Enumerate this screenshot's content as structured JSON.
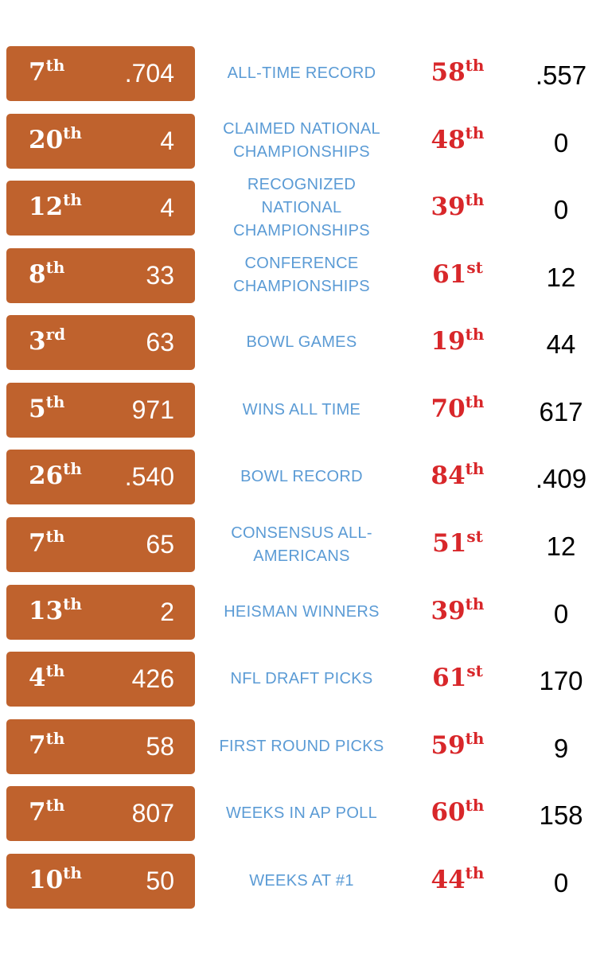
{
  "rows": [
    {
      "left_rank": "7th",
      "left_value": ".704",
      "label": "ALL-TIME RECORD",
      "right_rank": "58th",
      "right_value": ".557"
    },
    {
      "left_rank": "20th",
      "left_value": "4",
      "label": "CLAIMED NATIONAL CHAMPIONSHIPS",
      "right_rank": "48th",
      "right_value": "0"
    },
    {
      "left_rank": "12th",
      "left_value": "4",
      "label": "RECOGNIZED NATIONAL CHAMPIONSHIPS",
      "right_rank": "39th",
      "right_value": "0"
    },
    {
      "left_rank": "8th",
      "left_value": "33",
      "label": "CONFERENCE CHAMPIONSHIPS",
      "right_rank": "61st",
      "right_value": "12"
    },
    {
      "left_rank": "3rd",
      "left_value": "63",
      "label": "BOWL GAMES",
      "right_rank": "19th",
      "right_value": "44"
    },
    {
      "left_rank": "5th",
      "left_value": "971",
      "label": "WINS ALL TIME",
      "right_rank": "70th",
      "right_value": "617"
    },
    {
      "left_rank": "26th",
      "left_value": ".540",
      "label": "BOWL RECORD",
      "right_rank": "84th",
      "right_value": ".409"
    },
    {
      "left_rank": "7th",
      "left_value": "65",
      "label": "CONSENSUS ALL-AMERICANS",
      "right_rank": "51st",
      "right_value": "12"
    },
    {
      "left_rank": "13th",
      "left_value": "2",
      "label": "HEISMAN WINNERS",
      "right_rank": "39th",
      "right_value": "0"
    },
    {
      "left_rank": "4th",
      "left_value": "426",
      "label": "NFL DRAFT PICKS",
      "right_rank": "61st",
      "right_value": "170"
    },
    {
      "left_rank": "7th",
      "left_value": "58",
      "label": "FIRST ROUND PICKS",
      "right_rank": "59th",
      "right_value": "9"
    },
    {
      "left_rank": "7th",
      "left_value": "807",
      "label": "WEEKS IN AP POLL",
      "right_rank": "60th",
      "right_value": "158"
    },
    {
      "left_rank": "10th",
      "left_value": "50",
      "label": "WEEKS AT #1",
      "right_rank": "44th",
      "right_value": "0"
    }
  ]
}
